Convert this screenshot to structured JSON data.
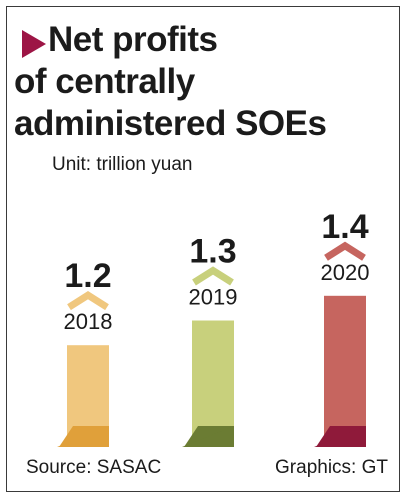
{
  "title_lines": [
    "Net profits",
    "of centrally",
    "administered SOEs"
  ],
  "unit": "Unit: trillion yuan",
  "source": "Source: SASAC",
  "credit": "Graphics: GT",
  "colors": {
    "title_marker": "#9d1545",
    "bar_2018": "#f0c77e",
    "bar_2018_base": "#e0a03a",
    "bar_2019": "#c8d07c",
    "bar_2019_base": "#6b7c33",
    "bar_2020": "#c6655f",
    "bar_2020_base": "#8f1a3a"
  },
  "chart_data": {
    "type": "bar",
    "categories": [
      "2018",
      "2019",
      "2020"
    ],
    "values": [
      1.2,
      1.3,
      1.4
    ],
    "value_labels": [
      "1.2",
      "1.3",
      "1.4"
    ],
    "title": "Net profits of centrally administered SOEs",
    "ylabel": "Unit: trillion yuan",
    "ylim": [
      0,
      1.4
    ],
    "grid": false,
    "legend": "none"
  }
}
